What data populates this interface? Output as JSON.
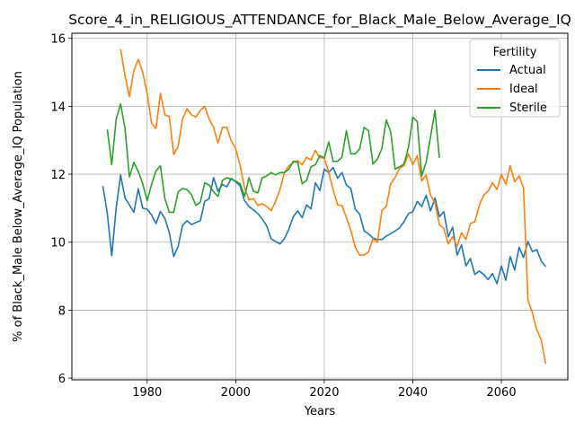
{
  "chart_data": {
    "type": "line",
    "title": "Score_4_in_RELIGIOUS_ATTENDANCE_for_Black_Male_Below_Average_IQ",
    "xlabel": "Years",
    "ylabel": "% of Black_Male Below_Average_IQ Population",
    "xlim": [
      1963,
      2075
    ],
    "ylim": [
      5.95,
      16.15
    ],
    "xticks": [
      1980,
      2000,
      2020,
      2040,
      2060
    ],
    "yticks": [
      6,
      8,
      10,
      12,
      14,
      16
    ],
    "grid": true,
    "legend": {
      "title": "Fertility",
      "placement": "top-right"
    },
    "series": [
      {
        "name": "Actual",
        "color": "#1f77b4",
        "x": [
          1970,
          1971,
          1972,
          1973,
          1974,
          1975,
          1976,
          1977,
          1978,
          1979,
          1980,
          1981,
          1982,
          1983,
          1984,
          1985,
          1986,
          1987,
          1988,
          1989,
          1990,
          1991,
          1992,
          1993,
          1994,
          1995,
          1996,
          1997,
          1998,
          1999,
          2000,
          2001,
          2002,
          2003,
          2004,
          2005,
          2006,
          2007,
          2008,
          2009,
          2010,
          2011,
          2012,
          2013,
          2014,
          2015,
          2016,
          2017,
          2018,
          2019,
          2020,
          2021,
          2022,
          2023,
          2024,
          2025,
          2026,
          2027,
          2028,
          2029,
          2030,
          2031,
          2032,
          2033,
          2034,
          2035,
          2036,
          2037,
          2038,
          2039,
          2040,
          2041,
          2042,
          2043,
          2044,
          2045,
          2046,
          2047,
          2048,
          2049,
          2050,
          2051,
          2052,
          2053,
          2054,
          2055,
          2056,
          2057,
          2058,
          2059,
          2060,
          2061,
          2062,
          2063,
          2064,
          2065,
          2066,
          2067,
          2068,
          2069,
          2070
        ],
        "values": [
          11.65,
          10.85,
          9.6,
          11,
          11.98,
          11.3,
          11.1,
          10.88,
          11.57,
          11,
          10.97,
          10.8,
          10.55,
          10.9,
          10.7,
          10.28,
          9.58,
          9.88,
          10.5,
          10.63,
          10.52,
          10.58,
          10.63,
          11.2,
          11.28,
          11.9,
          11.5,
          11.7,
          11.63,
          11.88,
          11.78,
          11.65,
          11.22,
          11.05,
          10.95,
          10.84,
          10.68,
          10.48,
          10.1,
          10.02,
          9.95,
          10.1,
          10.38,
          10.75,
          10.92,
          10.72,
          11.1,
          10.98,
          11.75,
          11.52,
          12.15,
          12.05,
          12.2,
          11.88,
          12.05,
          11.68,
          11.58,
          10.97,
          10.82,
          10.33,
          10.25,
          10.12,
          10.08,
          10.08,
          10.18,
          10.25,
          10.33,
          10.42,
          10.6,
          10.84,
          10.9,
          11.2,
          11.05,
          11.38,
          10.92,
          11.3,
          10.75,
          10.9,
          10.16,
          10.44,
          9.62,
          9.92,
          9.3,
          9.52,
          9.05,
          9.15,
          9.05,
          8.9,
          9.08,
          8.78,
          9.3,
          8.88,
          9.58,
          9.18,
          9.85,
          9.55,
          10.02,
          9.72,
          9.78,
          9.45,
          9.28
        ]
      },
      {
        "name": "Ideal",
        "color": "#ff7f0e",
        "x": [
          1974,
          1975,
          1976,
          1977,
          1978,
          1979,
          1980,
          1981,
          1982,
          1983,
          1984,
          1985,
          1986,
          1987,
          1988,
          1989,
          1990,
          1991,
          1992,
          1993,
          1994,
          1995,
          1996,
          1997,
          1998,
          1999,
          2000,
          2001,
          2002,
          2003,
          2004,
          2005,
          2006,
          2007,
          2008,
          2009,
          2010,
          2011,
          2012,
          2013,
          2014,
          2015,
          2016,
          2017,
          2018,
          2019,
          2020,
          2021,
          2022,
          2023,
          2024,
          2025,
          2026,
          2027,
          2028,
          2029,
          2030,
          2031,
          2032,
          2033,
          2034,
          2035,
          2036,
          2037,
          2038,
          2039,
          2040,
          2041,
          2042,
          2043,
          2044,
          2045,
          2046,
          2047,
          2048,
          2049,
          2050,
          2051,
          2052,
          2053,
          2054,
          2055,
          2056,
          2057,
          2058,
          2059,
          2060,
          2061,
          2062,
          2063,
          2064,
          2065,
          2066,
          2067,
          2068,
          2069,
          2070
        ],
        "values": [
          15.68,
          14.9,
          14.28,
          15.05,
          15.38,
          15,
          14.38,
          13.5,
          13.35,
          14.38,
          13.75,
          13.7,
          12.58,
          12.82,
          13.62,
          13.93,
          13.75,
          13.68,
          13.88,
          14,
          13.62,
          13.38,
          12.92,
          13.38,
          13.38,
          12.98,
          12.75,
          12.25,
          11.6,
          11.25,
          11.28,
          11.08,
          11.13,
          11.05,
          10.93,
          11.2,
          11.55,
          12.05,
          12.25,
          12.35,
          12.4,
          12.28,
          12.5,
          12.42,
          12.7,
          12.48,
          12.48,
          12.05,
          11.55,
          11.1,
          11.08,
          10.72,
          10.35,
          9.85,
          9.62,
          9.62,
          9.72,
          10.1,
          10,
          10.93,
          11.05,
          11.72,
          11.9,
          12.18,
          12.25,
          12.6,
          12.28,
          12.55,
          11.8,
          11.98,
          11.38,
          11.15,
          10.52,
          10.4,
          9.95,
          10.16,
          9.88,
          10.28,
          10.08,
          10.55,
          10.6,
          11.08,
          11.38,
          11.5,
          11.75,
          11.55,
          12,
          11.7,
          12.25,
          11.78,
          11.95,
          11.6,
          8.3,
          7.92,
          7.42,
          7.12,
          6.42
        ]
      },
      {
        "name": "Sterile",
        "color": "#2ca02c",
        "x": [
          1971,
          1972,
          1973,
          1974,
          1975,
          1976,
          1977,
          1978,
          1979,
          1980,
          1981,
          1982,
          1983,
          1984,
          1985,
          1986,
          1987,
          1988,
          1989,
          1990,
          1991,
          1992,
          1993,
          1994,
          1995,
          1996,
          1997,
          1998,
          1999,
          2000,
          2001,
          2002,
          2003,
          2004,
          2005,
          2006,
          2007,
          2008,
          2009,
          2010,
          2011,
          2012,
          2013,
          2014,
          2015,
          2016,
          2017,
          2018,
          2019,
          2020,
          2021,
          2022,
          2023,
          2024,
          2025,
          2026,
          2027,
          2028,
          2029,
          2030,
          2031,
          2032,
          2033,
          2034,
          2035,
          2036,
          2037,
          2038,
          2039,
          2040,
          2041,
          2042,
          2043,
          2044,
          2045,
          2046
        ],
        "values": [
          13.32,
          12.28,
          13.62,
          14.07,
          13.35,
          11.92,
          12.35,
          12.08,
          11.72,
          11.22,
          11.7,
          12.1,
          12.25,
          11.28,
          10.88,
          10.88,
          11.48,
          11.58,
          11.55,
          11.4,
          11.08,
          11.18,
          11.75,
          11.68,
          11.48,
          11.35,
          11.82,
          11.9,
          11.85,
          11.8,
          11.72,
          11.35,
          11.9,
          11.5,
          11.45,
          11.9,
          11.95,
          12.05,
          11.98,
          12.05,
          12.05,
          12.15,
          12.38,
          12.35,
          11.72,
          11.82,
          12.22,
          12.28,
          12.55,
          12.48,
          12.95,
          12.38,
          12.38,
          12.5,
          13.28,
          12.6,
          12.6,
          12.75,
          13.38,
          13.28,
          12.3,
          12.45,
          12.75,
          13.6,
          13.25,
          12.15,
          12.22,
          12.3,
          12.78,
          13.68,
          13.55,
          11.95,
          12.35,
          13.1,
          13.88,
          12.48
        ]
      }
    ]
  }
}
